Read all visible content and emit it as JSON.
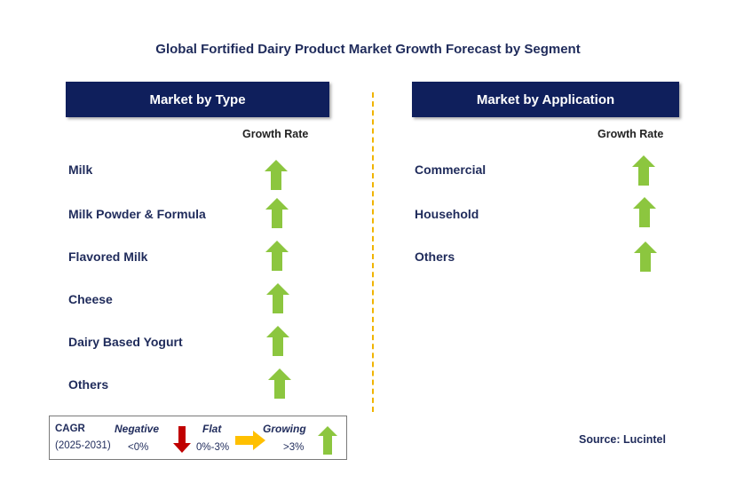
{
  "title": "Global Fortified Dairy Product Market Growth Forecast by Segment",
  "left_panel": {
    "header": "Market by Type",
    "column_label": "Growth Rate",
    "items": [
      {
        "label": "Milk",
        "trend": "growing"
      },
      {
        "label": "Milk Powder & Formula",
        "trend": "growing"
      },
      {
        "label": "Flavored Milk",
        "trend": "growing"
      },
      {
        "label": "Cheese",
        "trend": "growing"
      },
      {
        "label": "Dairy Based Yogurt",
        "trend": "growing"
      },
      {
        "label": "Others",
        "trend": "growing"
      }
    ]
  },
  "right_panel": {
    "header": "Market by Application",
    "column_label": "Growth Rate",
    "items": [
      {
        "label": "Commercial",
        "trend": "growing"
      },
      {
        "label": "Household",
        "trend": "growing"
      },
      {
        "label": "Others",
        "trend": "growing"
      }
    ]
  },
  "legend": {
    "cagr_label": "CAGR",
    "period": "(2025-2031)",
    "negative": {
      "label": "Negative",
      "range": "<0%",
      "icon": "down-arrow-icon"
    },
    "flat": {
      "label": "Flat",
      "range": "0%-3%",
      "icon": "right-arrow-icon"
    },
    "growing": {
      "label": "Growing",
      "range": ">3%",
      "icon": "up-arrow-icon"
    }
  },
  "source": "Source: Lucintel",
  "colors": {
    "header_bg": "#0f1f5c",
    "text": "#1f2b5b",
    "growing_arrow": "#8cc63f",
    "negative_arrow": "#c00000",
    "flat_arrow": "#ffc000",
    "divider": "#f0b400"
  }
}
